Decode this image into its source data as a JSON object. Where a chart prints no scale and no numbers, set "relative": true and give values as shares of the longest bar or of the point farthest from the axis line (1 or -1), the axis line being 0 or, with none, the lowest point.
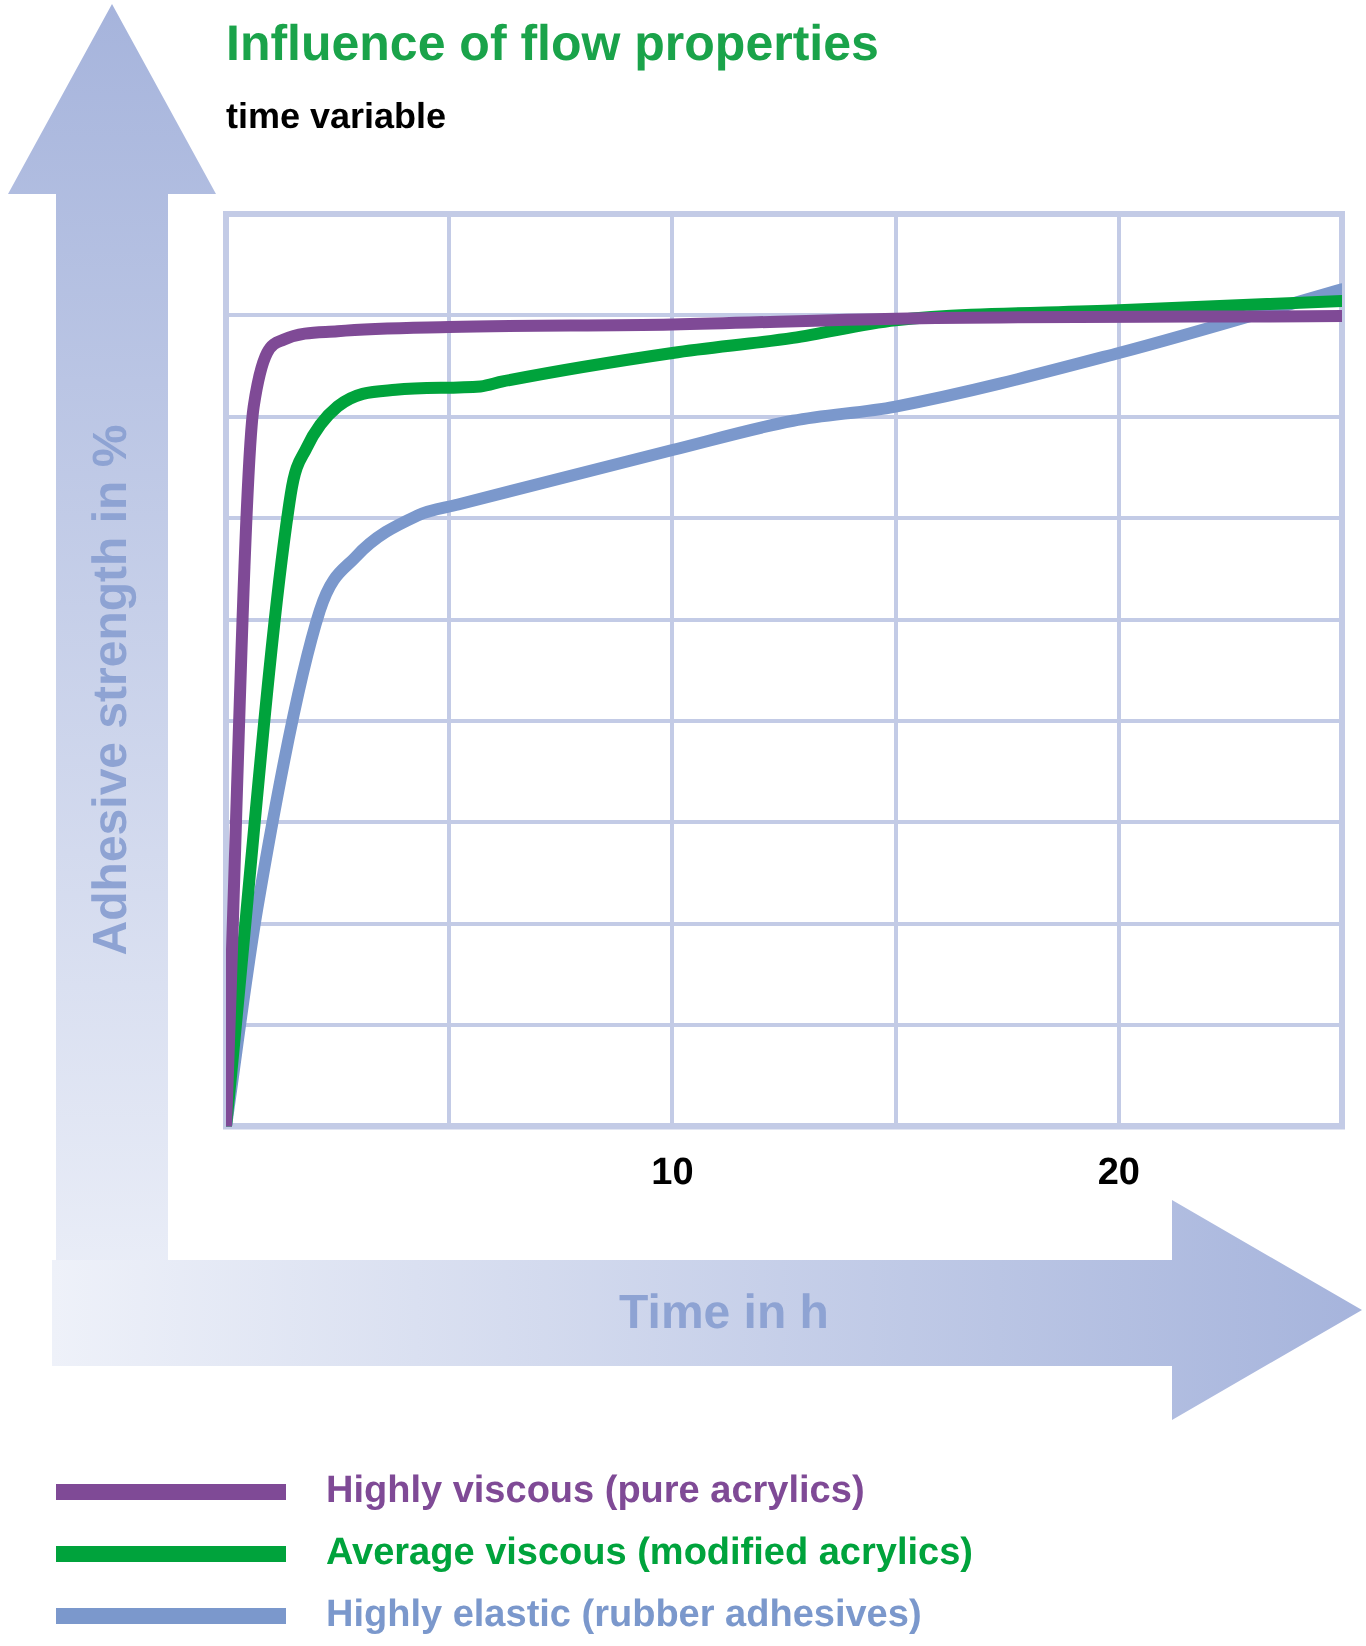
{
  "chart_data": {
    "type": "line",
    "title": "Influence of flow properties",
    "subtitle": "time variable",
    "xlabel": "Time in h",
    "ylabel": "Adhesive strength in %",
    "relative": true,
    "xlim": [
      0,
      25
    ],
    "xticks": [
      {
        "value": 0,
        "label": null
      },
      {
        "value": 5,
        "label": null
      },
      10,
      {
        "value": 15,
        "label": null
      },
      20,
      {
        "value": 25,
        "label": null
      }
    ],
    "grid": true,
    "legend": "bottom",
    "line_style": "solid",
    "series": [
      {
        "name": "Highly viscous (pure acrylics)",
        "color": "#7f4a96",
        "x": [
          0,
          0.62,
          1.3,
          2.5,
          5,
          10,
          15,
          25
        ],
        "values": [
          0,
          0.86,
          0.94,
          0.95,
          0.955,
          0.958,
          0.965,
          0.968
        ]
      },
      {
        "name": "Average viscous (modified acrylics)",
        "color": "#00a33c",
        "x": [
          0,
          1.45,
          1.8,
          2.5,
          3.8,
          5.7,
          6.2,
          10,
          12.7,
          15,
          20,
          25
        ],
        "values": [
          0,
          0.755,
          0.81,
          0.86,
          0.88,
          0.884,
          0.89,
          0.924,
          0.942,
          0.963,
          0.975,
          0.986
        ]
      },
      {
        "name": "Highly elastic (rubber adhesives)",
        "color": "#7b98cc",
        "x": [
          0,
          0.7,
          2.1,
          2.9,
          4.3,
          5.2,
          10,
          12.7,
          15,
          20,
          25
        ],
        "values": [
          0,
          0.26,
          0.616,
          0.68,
          0.73,
          0.743,
          0.808,
          0.843,
          0.86,
          0.924,
          1
        ]
      }
    ]
  }
}
